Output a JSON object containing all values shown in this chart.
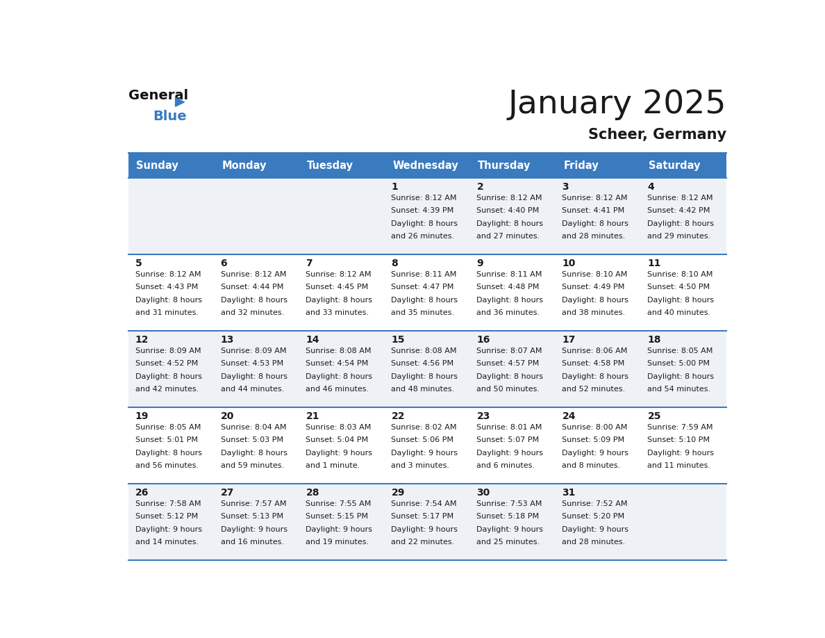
{
  "title": "January 2025",
  "subtitle": "Scheer, Germany",
  "header_bg_color": "#3a7abf",
  "header_text_color": "#ffffff",
  "cell_bg_color_odd": "#eef2f7",
  "cell_bg_color_even": "#ffffff",
  "border_color": "#3a7abf",
  "title_color": "#1a1a1a",
  "subtitle_color": "#1a1a1a",
  "day_number_color": "#1a1a1a",
  "cell_text_color": "#1a1a1a",
  "days_of_week": [
    "Sunday",
    "Monday",
    "Tuesday",
    "Wednesday",
    "Thursday",
    "Friday",
    "Saturday"
  ],
  "calendar": [
    [
      {
        "day": 0
      },
      {
        "day": 0
      },
      {
        "day": 0
      },
      {
        "day": 1,
        "sunrise": "8:12 AM",
        "sunset": "4:39 PM",
        "daylight_hours": 8,
        "daylight_minutes": 26
      },
      {
        "day": 2,
        "sunrise": "8:12 AM",
        "sunset": "4:40 PM",
        "daylight_hours": 8,
        "daylight_minutes": 27
      },
      {
        "day": 3,
        "sunrise": "8:12 AM",
        "sunset": "4:41 PM",
        "daylight_hours": 8,
        "daylight_minutes": 28
      },
      {
        "day": 4,
        "sunrise": "8:12 AM",
        "sunset": "4:42 PM",
        "daylight_hours": 8,
        "daylight_minutes": 29
      }
    ],
    [
      {
        "day": 5,
        "sunrise": "8:12 AM",
        "sunset": "4:43 PM",
        "daylight_hours": 8,
        "daylight_minutes": 31
      },
      {
        "day": 6,
        "sunrise": "8:12 AM",
        "sunset": "4:44 PM",
        "daylight_hours": 8,
        "daylight_minutes": 32
      },
      {
        "day": 7,
        "sunrise": "8:12 AM",
        "sunset": "4:45 PM",
        "daylight_hours": 8,
        "daylight_minutes": 33
      },
      {
        "day": 8,
        "sunrise": "8:11 AM",
        "sunset": "4:47 PM",
        "daylight_hours": 8,
        "daylight_minutes": 35
      },
      {
        "day": 9,
        "sunrise": "8:11 AM",
        "sunset": "4:48 PM",
        "daylight_hours": 8,
        "daylight_minutes": 36
      },
      {
        "day": 10,
        "sunrise": "8:10 AM",
        "sunset": "4:49 PM",
        "daylight_hours": 8,
        "daylight_minutes": 38
      },
      {
        "day": 11,
        "sunrise": "8:10 AM",
        "sunset": "4:50 PM",
        "daylight_hours": 8,
        "daylight_minutes": 40
      }
    ],
    [
      {
        "day": 12,
        "sunrise": "8:09 AM",
        "sunset": "4:52 PM",
        "daylight_hours": 8,
        "daylight_minutes": 42
      },
      {
        "day": 13,
        "sunrise": "8:09 AM",
        "sunset": "4:53 PM",
        "daylight_hours": 8,
        "daylight_minutes": 44
      },
      {
        "day": 14,
        "sunrise": "8:08 AM",
        "sunset": "4:54 PM",
        "daylight_hours": 8,
        "daylight_minutes": 46
      },
      {
        "day": 15,
        "sunrise": "8:08 AM",
        "sunset": "4:56 PM",
        "daylight_hours": 8,
        "daylight_minutes": 48
      },
      {
        "day": 16,
        "sunrise": "8:07 AM",
        "sunset": "4:57 PM",
        "daylight_hours": 8,
        "daylight_minutes": 50
      },
      {
        "day": 17,
        "sunrise": "8:06 AM",
        "sunset": "4:58 PM",
        "daylight_hours": 8,
        "daylight_minutes": 52
      },
      {
        "day": 18,
        "sunrise": "8:05 AM",
        "sunset": "5:00 PM",
        "daylight_hours": 8,
        "daylight_minutes": 54
      }
    ],
    [
      {
        "day": 19,
        "sunrise": "8:05 AM",
        "sunset": "5:01 PM",
        "daylight_hours": 8,
        "daylight_minutes": 56
      },
      {
        "day": 20,
        "sunrise": "8:04 AM",
        "sunset": "5:03 PM",
        "daylight_hours": 8,
        "daylight_minutes": 59
      },
      {
        "day": 21,
        "sunrise": "8:03 AM",
        "sunset": "5:04 PM",
        "daylight_hours": 9,
        "daylight_minutes": 1
      },
      {
        "day": 22,
        "sunrise": "8:02 AM",
        "sunset": "5:06 PM",
        "daylight_hours": 9,
        "daylight_minutes": 3
      },
      {
        "day": 23,
        "sunrise": "8:01 AM",
        "sunset": "5:07 PM",
        "daylight_hours": 9,
        "daylight_minutes": 6
      },
      {
        "day": 24,
        "sunrise": "8:00 AM",
        "sunset": "5:09 PM",
        "daylight_hours": 9,
        "daylight_minutes": 8
      },
      {
        "day": 25,
        "sunrise": "7:59 AM",
        "sunset": "5:10 PM",
        "daylight_hours": 9,
        "daylight_minutes": 11
      }
    ],
    [
      {
        "day": 26,
        "sunrise": "7:58 AM",
        "sunset": "5:12 PM",
        "daylight_hours": 9,
        "daylight_minutes": 14
      },
      {
        "day": 27,
        "sunrise": "7:57 AM",
        "sunset": "5:13 PM",
        "daylight_hours": 9,
        "daylight_minutes": 16
      },
      {
        "day": 28,
        "sunrise": "7:55 AM",
        "sunset": "5:15 PM",
        "daylight_hours": 9,
        "daylight_minutes": 19
      },
      {
        "day": 29,
        "sunrise": "7:54 AM",
        "sunset": "5:17 PM",
        "daylight_hours": 9,
        "daylight_minutes": 22
      },
      {
        "day": 30,
        "sunrise": "7:53 AM",
        "sunset": "5:18 PM",
        "daylight_hours": 9,
        "daylight_minutes": 25
      },
      {
        "day": 31,
        "sunrise": "7:52 AM",
        "sunset": "5:20 PM",
        "daylight_hours": 9,
        "daylight_minutes": 28
      },
      {
        "day": 0
      }
    ]
  ]
}
